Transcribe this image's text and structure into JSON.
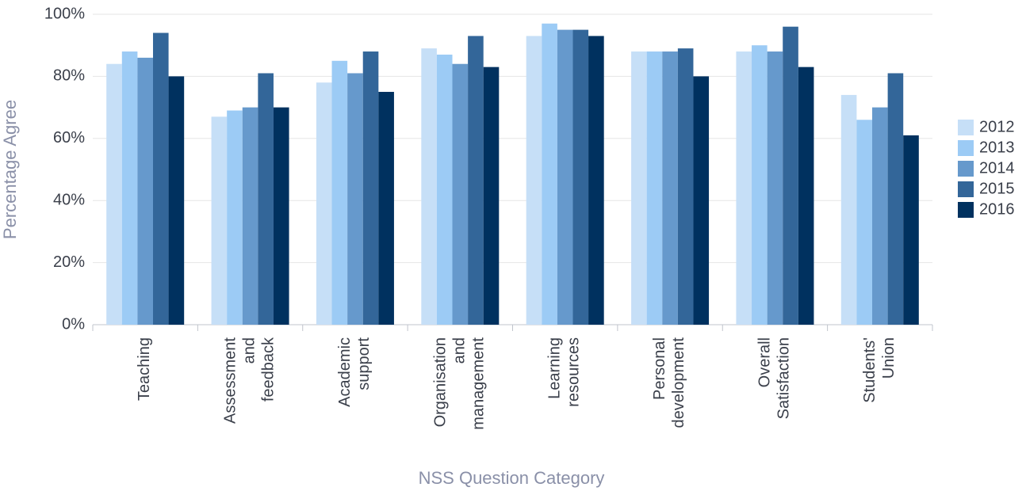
{
  "chart_data": {
    "type": "bar",
    "x_label": "NSS Question Category",
    "y_label": "Percentage Agree",
    "categories": [
      "Teaching",
      "Assessment and feedback",
      "Academic support",
      "Organisation and management",
      "Learning resources",
      "Personal development",
      "Overall Satisfaction",
      "Students' Union"
    ],
    "series": [
      {
        "name": "2012",
        "color": "#c6dff7",
        "values": [
          84,
          67,
          78,
          89,
          93,
          88,
          88,
          74
        ]
      },
      {
        "name": "2013",
        "color": "#9ccbf5",
        "values": [
          88,
          69,
          85,
          87,
          97,
          88,
          90,
          66
        ]
      },
      {
        "name": "2014",
        "color": "#6699cc",
        "values": [
          86,
          70,
          81,
          84,
          95,
          88,
          88,
          70
        ]
      },
      {
        "name": "2015",
        "color": "#336699",
        "values": [
          94,
          81,
          88,
          93,
          95,
          89,
          96,
          81
        ]
      },
      {
        "name": "2016",
        "color": "#00315f",
        "values": [
          80,
          70,
          75,
          83,
          93,
          80,
          83,
          61
        ]
      }
    ],
    "ylim": [
      0,
      100
    ],
    "yticks": [
      {
        "value": 0,
        "label": "0%"
      },
      {
        "value": 20,
        "label": "20%"
      },
      {
        "value": 40,
        "label": "40%"
      },
      {
        "value": 60,
        "label": "60%"
      },
      {
        "value": 80,
        "label": "80%"
      },
      {
        "value": 100,
        "label": "100%"
      }
    ],
    "grid": true,
    "legend": "right"
  }
}
